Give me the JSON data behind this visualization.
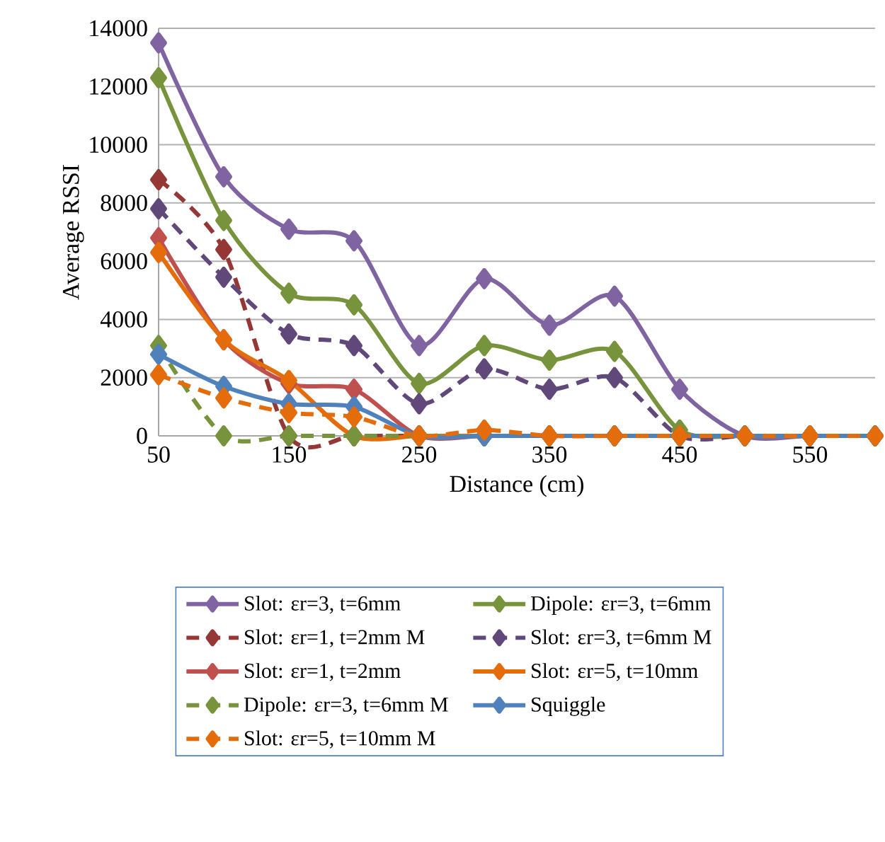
{
  "chart_data": {
    "type": "line",
    "xlabel": "Distance (cm)",
    "ylabel": "Average RSSI",
    "x": [
      50,
      100,
      150,
      200,
      250,
      300,
      350,
      400,
      450,
      500,
      550,
      600
    ],
    "xlim": [
      50,
      600
    ],
    "xticks": [
      50,
      150,
      250,
      350,
      450,
      550
    ],
    "ylim": [
      0,
      14000
    ],
    "yticks": [
      0,
      2000,
      4000,
      6000,
      8000,
      10000,
      12000,
      14000
    ],
    "grid": "y",
    "legend": "bottom",
    "marker": "diamond",
    "series": [
      {
        "name": "Slot: εr=3, t=6mm",
        "color": "#8064a2",
        "line_style": "solid",
        "values": [
          13500,
          8900,
          7100,
          6700,
          3100,
          5400,
          3800,
          4800,
          1600,
          0,
          0,
          0
        ]
      },
      {
        "name": "Dipole: εr=3, t=6mm",
        "color": "#77933c",
        "line_style": "solid",
        "values": [
          12300,
          7400,
          4900,
          4500,
          1800,
          3100,
          2600,
          2900,
          200,
          0,
          0,
          0
        ]
      },
      {
        "name": "Slot: εr=1, t=2mm M",
        "color": "#953735",
        "line_style": "dashed",
        "values": [
          8800,
          6400,
          0,
          0,
          0,
          0,
          0,
          0,
          0,
          0,
          0,
          0
        ]
      },
      {
        "name": "Slot: εr=3, t=6mm M",
        "color": "#60497a",
        "line_style": "dashed",
        "values": [
          7800,
          5450,
          3500,
          3100,
          1100,
          2300,
          1600,
          2000,
          0,
          0,
          0,
          0
        ]
      },
      {
        "name": "Slot: εr=1, t=2mm",
        "color": "#c0504d",
        "line_style": "solid",
        "values": [
          6800,
          3300,
          1800,
          1600,
          0,
          0,
          0,
          0,
          0,
          0,
          0,
          0
        ]
      },
      {
        "name": "Slot: εr=5, t=10mm",
        "color": "#e46c0a",
        "line_style": "solid",
        "values": [
          6300,
          3300,
          1900,
          0,
          0,
          0,
          0,
          0,
          0,
          0,
          0,
          0
        ]
      },
      {
        "name": "Dipole: εr=3, t=6mm M",
        "color": "#77933c",
        "line_style": "dashed",
        "values": [
          3100,
          0,
          0,
          0,
          0,
          0,
          0,
          0,
          0,
          0,
          0,
          0
        ]
      },
      {
        "name": "Squiggle",
        "color": "#4f81bd",
        "line_style": "solid",
        "values": [
          2800,
          1700,
          1100,
          1000,
          0,
          0,
          0,
          0,
          0,
          0,
          0,
          0
        ]
      },
      {
        "name": "Slot: εr=5, t=10mm M",
        "color": "#e46c0a",
        "line_style": "dashed",
        "values": [
          2100,
          1300,
          800,
          650,
          0,
          200,
          0,
          0,
          0,
          0,
          0,
          0
        ]
      }
    ]
  }
}
